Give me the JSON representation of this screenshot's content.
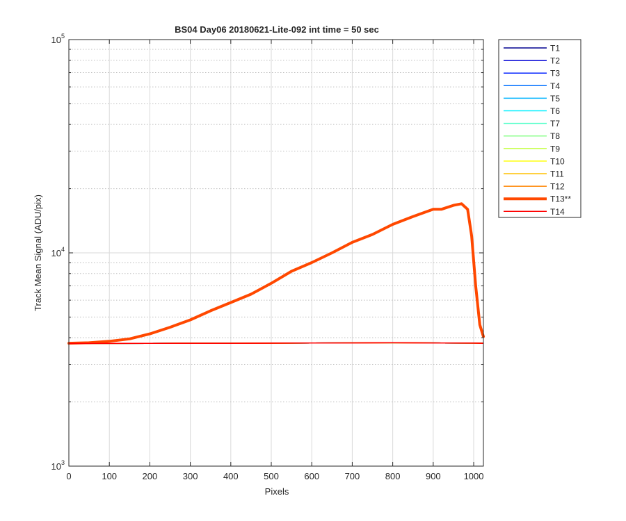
{
  "chart_data": {
    "type": "line",
    "title": "BS04 Day06 20180621-Lite-092 int time = 50 sec",
    "xlabel": "Pixels",
    "ylabel": "Track Mean Signal (ADU/pix)",
    "x_scale": "linear",
    "y_scale": "log",
    "xlim": [
      0,
      1024
    ],
    "ylim": [
      1000,
      100000
    ],
    "x_ticks": [
      0,
      100,
      200,
      300,
      400,
      500,
      600,
      700,
      800,
      900,
      1000
    ],
    "x_tick_labels": [
      "0",
      "100",
      "200",
      "300",
      "400",
      "500",
      "600",
      "700",
      "800",
      "900",
      "1000"
    ],
    "y_ticks": [
      1000,
      10000,
      100000
    ],
    "y_tick_labels": [
      {
        "base": "10",
        "exp": "3"
      },
      {
        "base": "10",
        "exp": "4"
      },
      {
        "base": "10",
        "exp": "5"
      }
    ],
    "grid": true,
    "legend_position": "outside-right",
    "series": [
      {
        "name": "T1",
        "color": "#00008f",
        "width": 1.5
      },
      {
        "name": "T2",
        "color": "#0000d6",
        "width": 1.5
      },
      {
        "name": "T3",
        "color": "#0020ff",
        "width": 1.5
      },
      {
        "name": "T4",
        "color": "#0070ff",
        "width": 1.5
      },
      {
        "name": "T5",
        "color": "#00b4ff",
        "width": 1.5
      },
      {
        "name": "T6",
        "color": "#00f0ff",
        "width": 1.5
      },
      {
        "name": "T7",
        "color": "#50ffc8",
        "width": 1.5
      },
      {
        "name": "T8",
        "color": "#8cff8c",
        "width": 1.5
      },
      {
        "name": "T9",
        "color": "#c8ff50",
        "width": 1.5
      },
      {
        "name": "T10",
        "color": "#ffff00",
        "width": 1.5
      },
      {
        "name": "T11",
        "color": "#ffc000",
        "width": 1.5
      },
      {
        "name": "T12",
        "color": "#ff8400",
        "width": 1.5
      },
      {
        "name": "T13**",
        "color": "#ff4800",
        "width": 4
      },
      {
        "name": "T14",
        "color": "#ff0000",
        "width": 1.5
      }
    ],
    "baseline_series": {
      "applies_to": [
        "T1",
        "T2",
        "T3",
        "T4",
        "T5",
        "T6",
        "T7",
        "T8",
        "T9",
        "T10",
        "T11",
        "T12",
        "T14"
      ],
      "x": [
        0,
        200,
        400,
        600,
        800,
        1000,
        1024
      ],
      "y": [
        3760,
        3765,
        3770,
        3778,
        3790,
        3775,
        3770
      ]
    },
    "highlight_series": {
      "name": "T13**",
      "x": [
        0,
        50,
        100,
        150,
        200,
        250,
        300,
        350,
        400,
        450,
        500,
        550,
        600,
        650,
        700,
        750,
        800,
        850,
        900,
        920,
        950,
        970,
        985,
        995,
        1005,
        1015,
        1024
      ],
      "y": [
        3770,
        3790,
        3850,
        3950,
        4170,
        4480,
        4850,
        5350,
        5850,
        6400,
        7200,
        8200,
        9000,
        10000,
        11200,
        12200,
        13600,
        14800,
        16000,
        16000,
        16700,
        17000,
        16000,
        12000,
        7000,
        4600,
        4050
      ]
    }
  }
}
